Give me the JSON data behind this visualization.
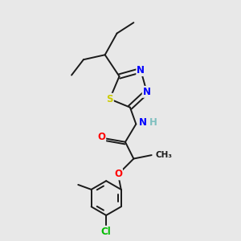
{
  "bg_color": "#e8e8e8",
  "bond_color": "#1a1a1a",
  "atoms": {
    "S": {
      "color": "#cccc00"
    },
    "N": {
      "color": "#0000ff"
    },
    "O": {
      "color": "#ff0000"
    },
    "Cl": {
      "color": "#00bb00"
    },
    "H": {
      "color": "#7fbfbf"
    }
  },
  "lw": 1.4,
  "fs": 8.0,
  "fig_w": 3.0,
  "fig_h": 3.0,
  "dpi": 100,
  "xlim": [
    0,
    10
  ],
  "ylim": [
    0,
    10
  ]
}
